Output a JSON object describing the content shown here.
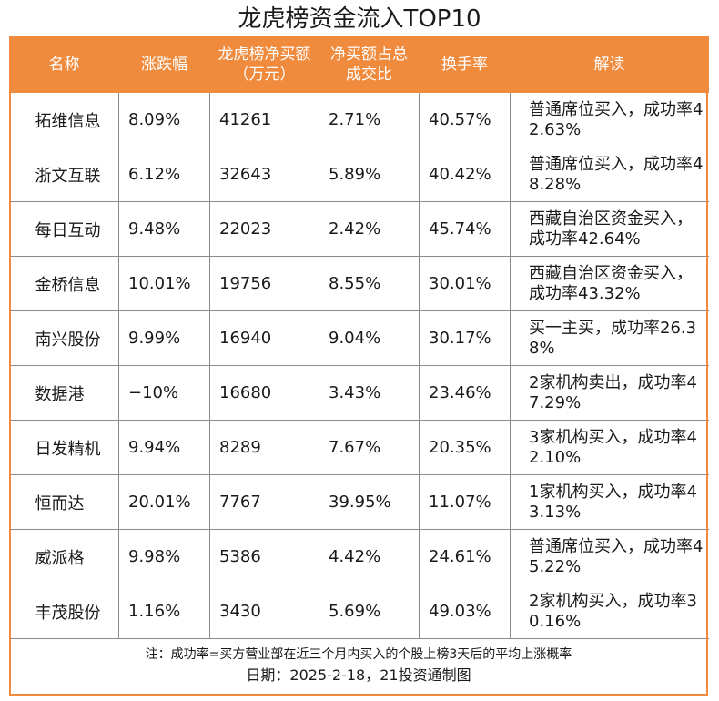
{
  "title": "龙虎榜资金流入TOP10",
  "colors": {
    "header_bg": "#f08a3c",
    "border": "#8a8a8a"
  },
  "columns": [
    "名称",
    "涨跌幅",
    "龙虎榜净买额（万元）",
    "净买额占总成交比",
    "换手率",
    "解读"
  ],
  "rows": [
    [
      "拓维信息",
      "8.09%",
      "41261",
      "2.71%",
      "40.57%",
      "普通席位买入，成功率42.63%"
    ],
    [
      "浙文互联",
      "6.12%",
      "32643",
      "5.89%",
      "40.42%",
      "普通席位买入，成功率48.28%"
    ],
    [
      "每日互动",
      "9.48%",
      "22023",
      "2.42%",
      "45.74%",
      "西藏自治区资金买入，成功率42.64%"
    ],
    [
      "金桥信息",
      "10.01%",
      "19756",
      "8.55%",
      "30.01%",
      "西藏自治区资金买入，成功率43.32%"
    ],
    [
      "南兴股份",
      "9.99%",
      "16940",
      "9.04%",
      "30.17%",
      "买一主买，成功率26.38%"
    ],
    [
      "数据港",
      "−10%",
      "16680",
      "3.43%",
      "23.46%",
      "2家机构卖出，成功率47.29%"
    ],
    [
      "日发精机",
      "9.94%",
      "8289",
      "7.67%",
      "20.35%",
      "3家机构买入，成功率42.10%"
    ],
    [
      "恒而达",
      "20.01%",
      "7767",
      "39.95%",
      "11.07%",
      "1家机构买入，成功率43.13%"
    ],
    [
      "威派格",
      "9.98%",
      "5386",
      "4.42%",
      "24.61%",
      "普通席位买入，成功率45.22%"
    ],
    [
      "丰茂股份",
      "1.16%",
      "3430",
      "5.69%",
      "49.03%",
      "2家机构买入，成功率30.16%"
    ]
  ],
  "footnote": "注：成功率=买方营业部在近三个月内买入的个股上榜3天后的平均上涨概率",
  "dateline": "日期：2025-2-18，21投资通制图"
}
